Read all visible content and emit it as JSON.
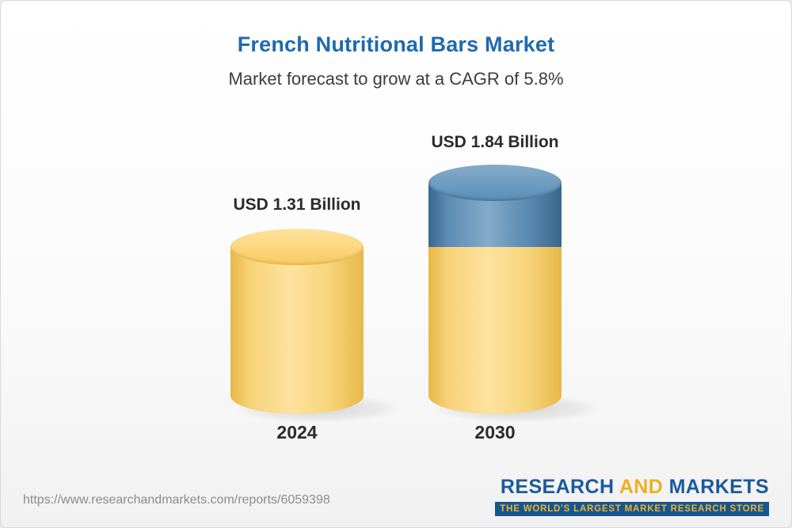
{
  "header": {
    "title": "French Nutritional Bars Market",
    "subtitle": "Market forecast to grow at a CAGR of 5.8%"
  },
  "chart_data": {
    "type": "bar",
    "bar_style": "3d-cylinder",
    "categories": [
      "2024",
      "2030"
    ],
    "values": [
      1.31,
      1.84
    ],
    "value_labels": [
      "USD 1.31 Billion",
      "USD 1.84 Billion"
    ],
    "unit": "USD Billion",
    "cagr_pct": 5.8,
    "legend_position": "none",
    "grid": false,
    "colors": {
      "base_segment": "#F5C75E",
      "growth_segment": "#5D8CB4"
    },
    "notes": "2030 cylinder shows the 2024 base in yellow with the incremental growth segment in blue on top"
  },
  "footer": {
    "url": "https://www.researchandmarkets.com/reports/6059398",
    "logo": {
      "part1": "RESEARCH",
      "part2": "AND",
      "part3": "MARKETS",
      "tagline": "THE WORLD'S LARGEST MARKET RESEARCH STORE"
    }
  }
}
